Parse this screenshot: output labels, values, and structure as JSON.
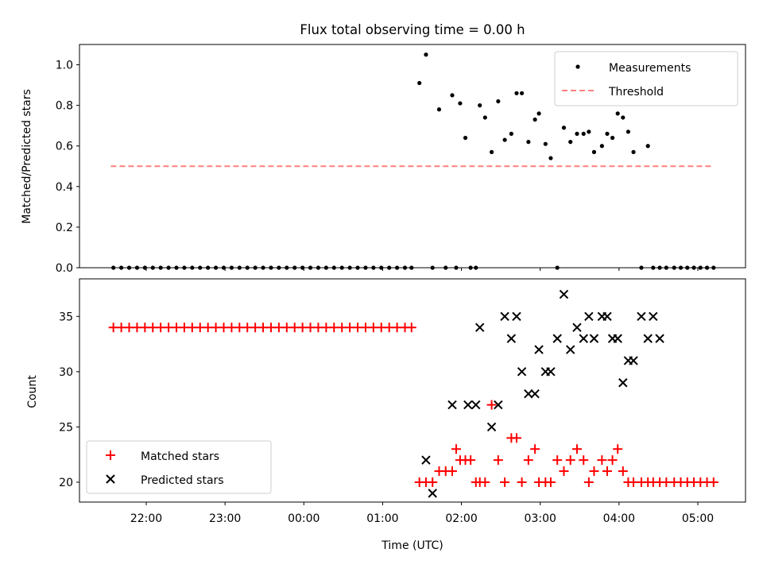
{
  "chart_data": [
    {
      "type": "scatter",
      "title": "Flux total observing time = 0.00 h",
      "xlabel": "",
      "ylabel": "Matched/Predicted stars",
      "ylim": [
        0,
        1.1
      ],
      "yticks": [
        "0.0",
        "0.2",
        "0.4",
        "0.6",
        "0.8",
        "1.0"
      ],
      "xticks_labels_shown": false,
      "legend_position": "top-right",
      "grid": false,
      "series": [
        {
          "name": "Measurements",
          "type": "scatter",
          "color": "#000000",
          "marker": "dot",
          "x": [
            "21:35",
            "21:41",
            "21:47",
            "21:53",
            "21:59",
            "22:05",
            "22:11",
            "22:17",
            "22:23",
            "22:29",
            "22:35",
            "22:41",
            "22:47",
            "22:53",
            "22:59",
            "23:05",
            "23:11",
            "23:17",
            "23:23",
            "23:29",
            "23:35",
            "23:41",
            "23:47",
            "23:53",
            "23:59",
            "00:05",
            "00:11",
            "00:17",
            "00:23",
            "00:29",
            "00:35",
            "00:41",
            "00:47",
            "00:53",
            "00:59",
            "01:05",
            "01:11",
            "01:17",
            "01:22",
            "01:28",
            "01:33",
            "01:38",
            "01:43",
            "01:48",
            "01:53",
            "01:56",
            "01:59",
            "02:03",
            "02:07",
            "02:11",
            "02:14",
            "02:18",
            "02:23",
            "02:28",
            "02:33",
            "02:38",
            "02:42",
            "02:46",
            "02:51",
            "02:56",
            "02:59",
            "03:04",
            "03:08",
            "03:13",
            "03:18",
            "03:23",
            "03:28",
            "03:33",
            "03:37",
            "03:41",
            "03:47",
            "03:51",
            "03:55",
            "03:59",
            "04:03",
            "04:07",
            "04:11",
            "04:17",
            "04:22",
            "04:26",
            "04:31",
            "04:36",
            "04:42",
            "04:47",
            "04:52",
            "04:57",
            "05:02",
            "05:07",
            "05:12"
          ],
          "y": [
            0,
            0,
            0,
            0,
            0,
            0,
            0,
            0,
            0,
            0,
            0,
            0,
            0,
            0,
            0,
            0,
            0,
            0,
            0,
            0,
            0,
            0,
            0,
            0,
            0,
            0,
            0,
            0,
            0,
            0,
            0,
            0,
            0,
            0,
            0,
            0,
            0,
            0,
            0,
            0.91,
            1.05,
            0,
            0.78,
            0,
            0.85,
            0,
            0.81,
            0.64,
            0,
            0,
            0.8,
            0.74,
            0.57,
            0.82,
            0.63,
            0.66,
            0.86,
            0.86,
            0.62,
            0.73,
            0.76,
            0.61,
            0.54,
            0,
            0.69,
            0.62,
            0.66,
            0.66,
            0.67,
            0.57,
            0.6,
            0.66,
            0.64,
            0.76,
            0.74,
            0.67,
            0.57,
            0,
            0.6,
            0,
            0,
            0,
            0,
            0,
            0,
            0,
            0,
            0,
            0
          ]
        },
        {
          "name": "Threshold",
          "type": "line",
          "color": "#ff7f7f",
          "style": "dashed",
          "x": [
            "21:33",
            "05:10"
          ],
          "y": [
            0.5,
            0.5
          ]
        }
      ]
    },
    {
      "type": "scatter",
      "title": "",
      "xlabel": "Time (UTC)",
      "ylabel": "Count",
      "ylim": [
        18.2,
        38.4
      ],
      "yticks": [
        "20",
        "25",
        "30",
        "35"
      ],
      "xticks": [
        "22:00",
        "23:00",
        "00:00",
        "01:00",
        "02:00",
        "03:00",
        "04:00",
        "05:00"
      ],
      "legend_position": "bottom-left",
      "grid": false,
      "series": [
        {
          "name": "Matched stars",
          "color": "#ff0000",
          "marker": "plus",
          "x": [
            "21:35",
            "21:41",
            "21:47",
            "21:53",
            "21:59",
            "22:05",
            "22:11",
            "22:17",
            "22:23",
            "22:29",
            "22:35",
            "22:41",
            "22:47",
            "22:53",
            "22:59",
            "23:05",
            "23:11",
            "23:17",
            "23:23",
            "23:29",
            "23:35",
            "23:41",
            "23:47",
            "23:53",
            "23:59",
            "00:05",
            "00:11",
            "00:17",
            "00:23",
            "00:29",
            "00:35",
            "00:41",
            "00:47",
            "00:53",
            "00:59",
            "01:05",
            "01:11",
            "01:17",
            "01:22",
            "01:28",
            "01:33",
            "01:38",
            "01:43",
            "01:48",
            "01:53",
            "01:56",
            "01:59",
            "02:03",
            "02:07",
            "02:11",
            "02:14",
            "02:18",
            "02:23",
            "02:28",
            "02:33",
            "02:38",
            "02:42",
            "02:46",
            "02:51",
            "02:56",
            "02:59",
            "03:04",
            "03:08",
            "03:13",
            "03:18",
            "03:23",
            "03:28",
            "03:33",
            "03:37",
            "03:41",
            "03:47",
            "03:51",
            "03:55",
            "03:59",
            "04:03",
            "04:07",
            "04:11",
            "04:17",
            "04:22",
            "04:26",
            "04:31",
            "04:36",
            "04:42",
            "04:47",
            "04:52",
            "04:57",
            "05:02",
            "05:07",
            "05:12"
          ],
          "y": [
            34,
            34,
            34,
            34,
            34,
            34,
            34,
            34,
            34,
            34,
            34,
            34,
            34,
            34,
            34,
            34,
            34,
            34,
            34,
            34,
            34,
            34,
            34,
            34,
            34,
            34,
            34,
            34,
            34,
            34,
            34,
            34,
            34,
            34,
            34,
            34,
            34,
            34,
            34,
            20,
            20,
            20,
            21,
            21,
            21,
            23,
            22,
            22,
            22,
            20,
            20,
            20,
            27,
            22,
            20,
            24,
            24,
            20,
            22,
            23,
            20,
            20,
            20,
            22,
            21,
            22,
            23,
            22,
            20,
            21,
            22,
            21,
            22,
            23,
            21,
            20,
            20,
            20,
            20,
            20,
            20,
            20,
            20,
            20,
            20,
            20,
            20,
            20,
            20
          ]
        },
        {
          "name": "Predicted stars",
          "color": "#000000",
          "marker": "x",
          "x": [
            "01:33",
            "01:38",
            "01:53",
            "02:05",
            "02:11",
            "02:14",
            "02:23",
            "02:28",
            "02:33",
            "02:38",
            "02:42",
            "02:46",
            "02:51",
            "02:56",
            "02:59",
            "03:04",
            "03:08",
            "03:13",
            "03:18",
            "03:23",
            "03:28",
            "03:33",
            "03:37",
            "03:41",
            "03:47",
            "03:51",
            "03:55",
            "03:59",
            "04:03",
            "04:07",
            "04:11",
            "04:17",
            "04:22",
            "04:26",
            "04:31"
          ],
          "y": [
            22,
            19,
            27,
            27,
            27,
            34,
            25,
            27,
            35,
            33,
            35,
            30,
            28,
            28,
            32,
            30,
            30,
            33,
            37,
            32,
            34,
            33,
            35,
            33,
            35,
            35,
            33,
            33,
            29,
            31,
            31,
            35,
            33,
            35,
            33
          ]
        }
      ]
    }
  ]
}
